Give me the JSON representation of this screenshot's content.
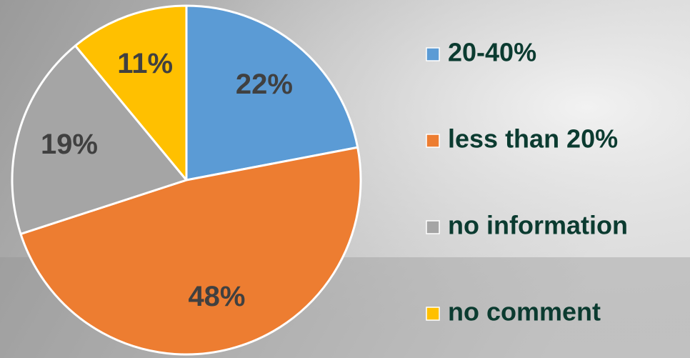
{
  "chart_data": {
    "type": "pie",
    "categories": [
      "20-40%",
      "less than 20%",
      "no information",
      "no comment"
    ],
    "values": [
      22,
      48,
      19,
      11
    ],
    "value_labels": [
      "22%",
      "48%",
      "19%",
      "11%"
    ],
    "colors": [
      "#5b9bd5",
      "#ed7d31",
      "#a5a5a5",
      "#ffc000"
    ],
    "legend": "right"
  }
}
